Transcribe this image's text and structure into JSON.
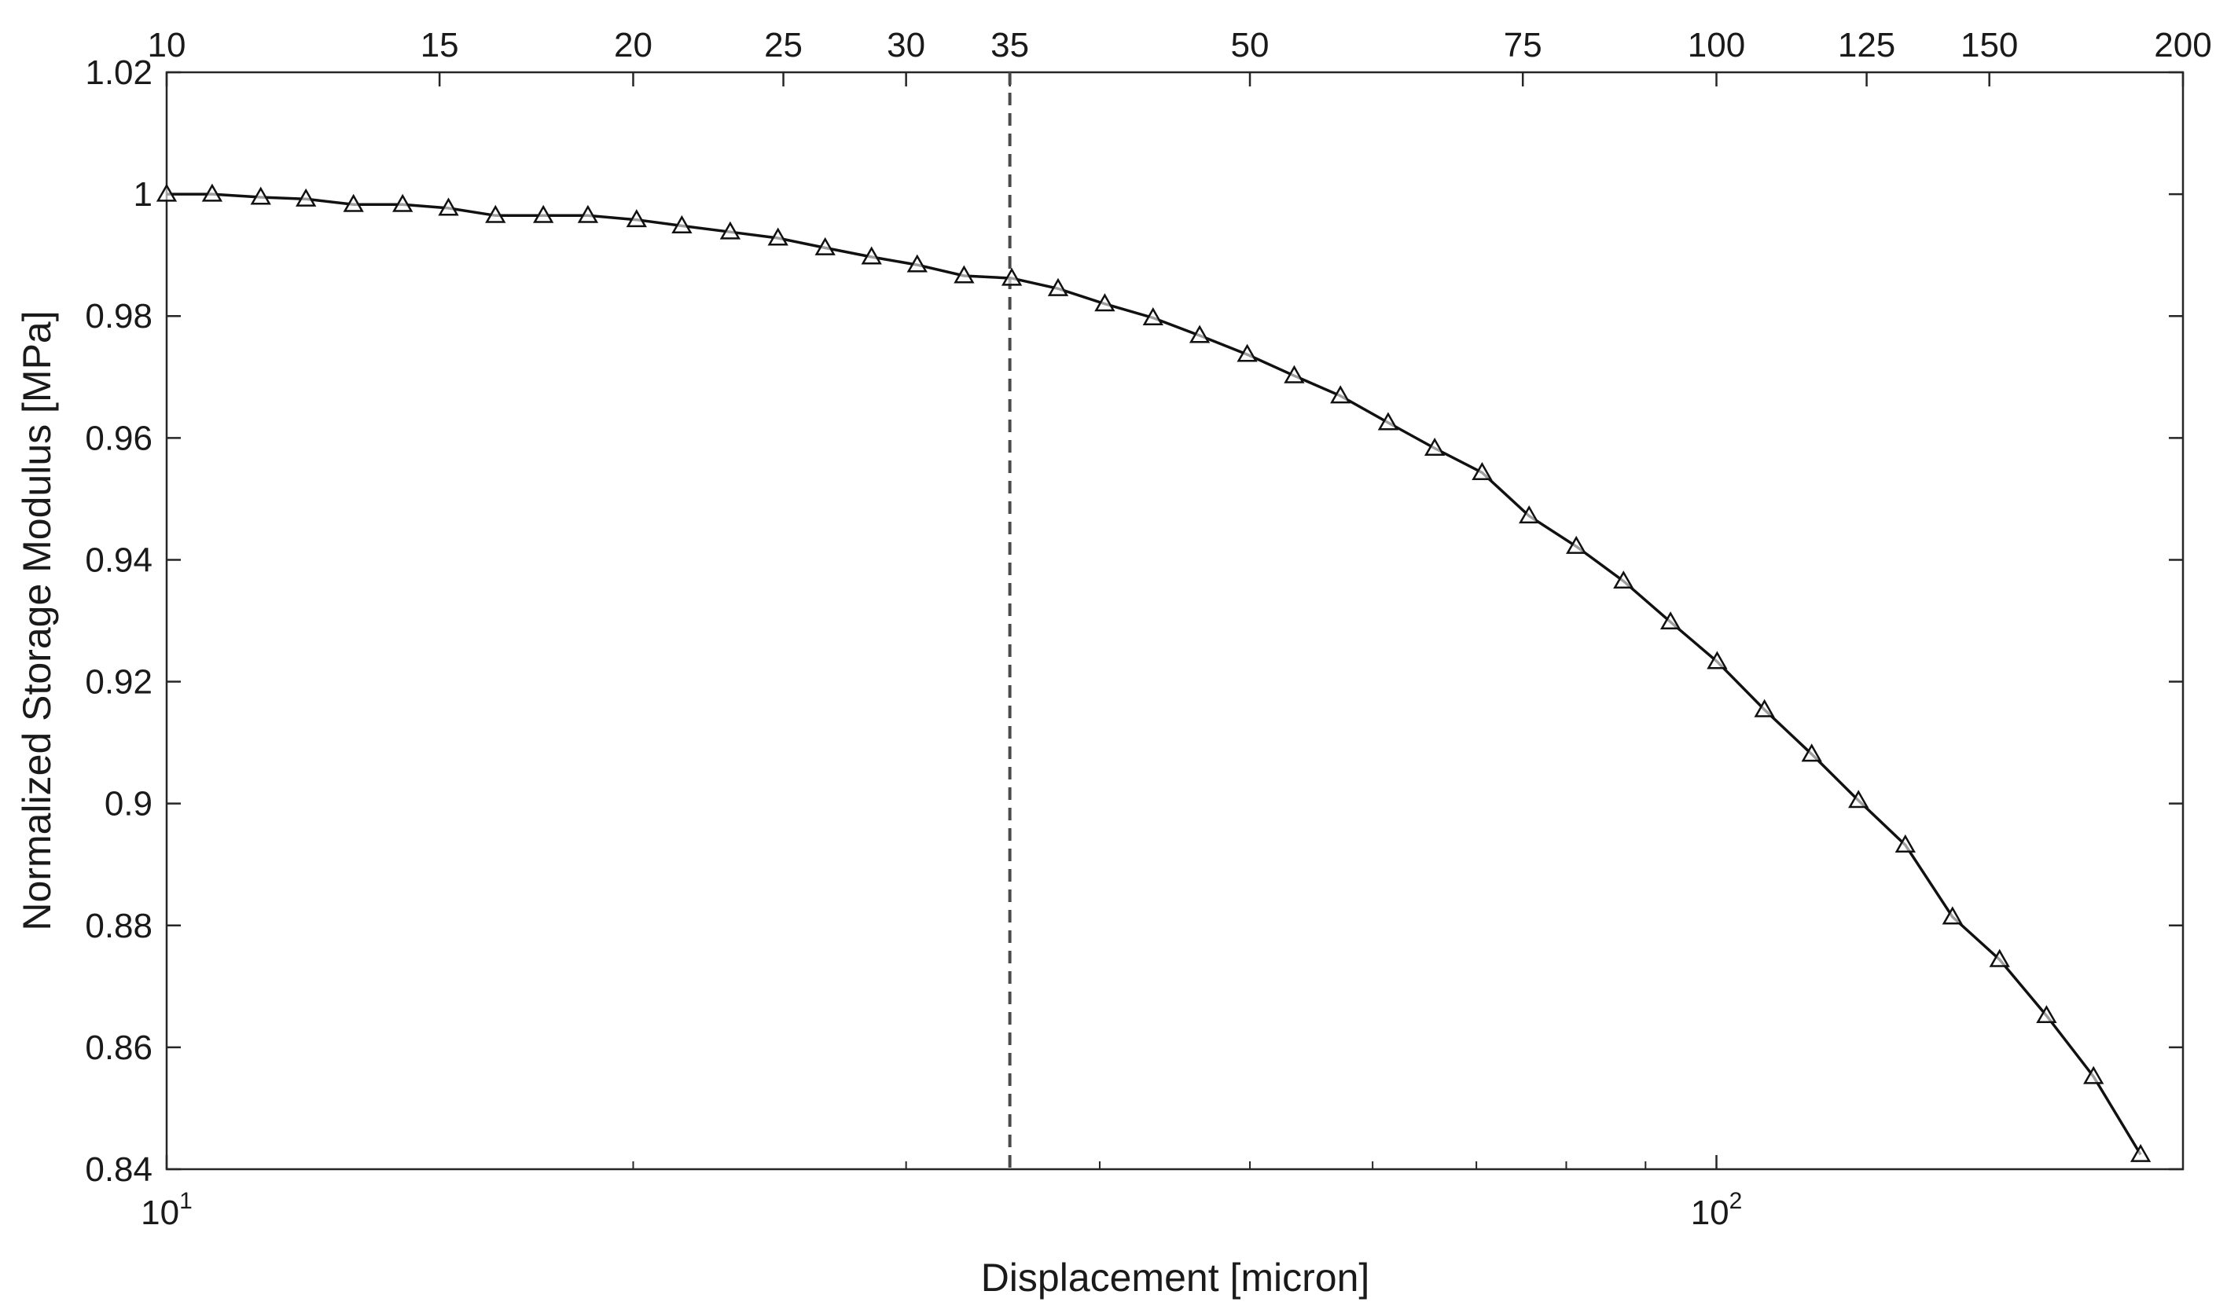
{
  "chart_data": {
    "type": "line",
    "title": "",
    "xlabel": "Displacement [micron]",
    "ylabel": "Normalized Storage Modulus [MPa]",
    "xscale": "log",
    "xlim": [
      10,
      200
    ],
    "ylim": [
      0.84,
      1.02
    ],
    "grid": false,
    "bottom_ticks": [
      {
        "value": 10,
        "base": "10",
        "exponent": "1"
      },
      {
        "value": 100,
        "base": "10",
        "exponent": "2"
      }
    ],
    "top_ticks": [
      "10",
      "15",
      "20",
      "25",
      "30",
      "35",
      "50",
      "75",
      "100",
      "125",
      "150",
      "200"
    ],
    "y_ticks": [
      "0.84",
      "0.86",
      "0.88",
      "0.9",
      "0.92",
      "0.94",
      "0.96",
      "0.98",
      "1",
      "1.02"
    ],
    "vertical_line": {
      "x": 35,
      "style": "dashed"
    },
    "marker": "triangle",
    "series": [
      {
        "x": [
          10.0,
          10.7,
          11.5,
          12.3,
          13.2,
          14.2,
          15.2,
          16.3,
          17.5,
          18.7,
          20.1,
          21.5,
          23.1,
          24.8,
          26.6,
          28.5,
          30.5,
          32.7,
          35.1,
          37.6,
          40.3,
          43.3,
          46.4,
          49.8,
          53.4,
          57.2,
          61.4,
          65.8,
          70.6,
          75.7,
          81.2,
          87.1,
          93.4,
          100.1,
          107.4,
          115.2,
          123.5,
          132.4,
          142.0,
          152.3,
          163.3,
          175.1,
          187.8
        ],
        "y": [
          1.0,
          1.0,
          0.9995,
          0.9992,
          0.9983,
          0.9983,
          0.9977,
          0.9965,
          0.9965,
          0.9965,
          0.9958,
          0.9948,
          0.9938,
          0.9928,
          0.9912,
          0.9897,
          0.9884,
          0.9866,
          0.9862,
          0.9845,
          0.982,
          0.9797,
          0.9768,
          0.9737,
          0.9702,
          0.9669,
          0.9625,
          0.9583,
          0.9543,
          0.9472,
          0.9422,
          0.9365,
          0.9298,
          0.9233,
          0.9154,
          0.9081,
          0.9005,
          0.8932,
          0.8814,
          0.8744,
          0.8652,
          0.8552,
          0.8424
        ]
      }
    ]
  }
}
